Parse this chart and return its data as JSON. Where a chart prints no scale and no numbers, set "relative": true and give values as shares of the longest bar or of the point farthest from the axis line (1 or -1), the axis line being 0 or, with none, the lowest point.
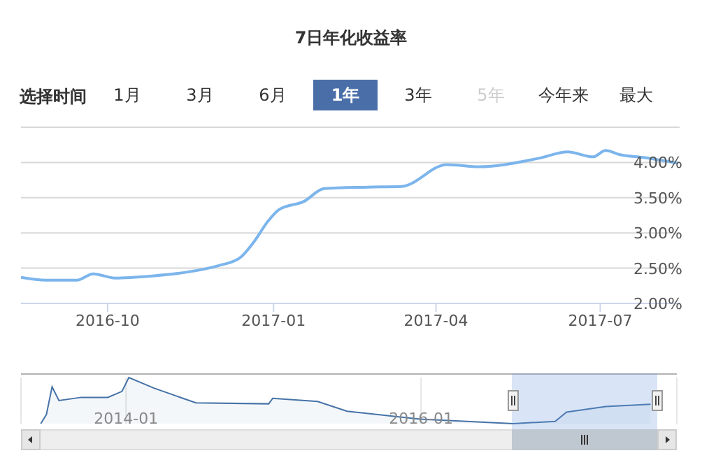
{
  "chart_data": [
    {
      "type": "line",
      "title": "7日年化收益率",
      "annotations": [
        "选择时间",
        "1月",
        "3月",
        "6月",
        "1年",
        "3年",
        "5年",
        "今年来",
        "最大"
      ],
      "x": [
        "2016-08-14",
        "2016-08-28",
        "2016-09-14",
        "2016-09-23",
        "2016-10-05",
        "2016-10-26",
        "2016-11-13",
        "2016-12-02",
        "2016-12-13",
        "2016-12-21",
        "2016-12-29",
        "2017-01-04",
        "2017-01-18",
        "2017-01-29",
        "2017-02-22",
        "2017-03-13",
        "2017-04-07",
        "2017-04-25",
        "2017-05-28",
        "2017-06-13",
        "2017-06-27",
        "2017-07-04",
        "2017-07-12",
        "2017-07-25",
        "2017-08-13"
      ],
      "series": [
        {
          "color": "#7cb5ec",
          "values": [
            2.37,
            2.33,
            2.33,
            2.42,
            2.36,
            2.39,
            2.44,
            2.54,
            2.64,
            2.87,
            3.17,
            3.33,
            3.45,
            3.63,
            3.65,
            3.66,
            3.97,
            3.94,
            4.06,
            4.15,
            4.08,
            4.17,
            4.11,
            4.07,
            3.99
          ]
        }
      ],
      "xlim": [
        "2016-08-14",
        "2017-08-14"
      ],
      "xticks": [
        "2016-10",
        "2017-01",
        "2017-04",
        "2017-07"
      ],
      "ylim": [
        2.0,
        4.5
      ],
      "yticks": [
        {
          "value": 2.0,
          "label": "2.00%"
        },
        {
          "value": 2.5,
          "label": "2.50%"
        },
        {
          "value": 3.0,
          "label": "3.00%"
        },
        {
          "value": 3.5,
          "label": "3.50%"
        },
        {
          "value": 4.0,
          "label": "4.00%"
        },
        {
          "value": 4.5,
          "label": null
        }
      ],
      "grid": "y",
      "legend": false,
      "marker": "none",
      "line_style": "solid"
    },
    {
      "type": "area",
      "relative": true,
      "x": [
        "2013-06-04",
        "2013-06-18",
        "2013-07-02",
        "2013-07-19",
        "2013-09-12",
        "2013-11-17",
        "2013-12-22",
        "2014-01-08",
        "2014-03-11",
        "2014-06-23",
        "2014-12-20",
        "2014-12-30",
        "2015-04-20",
        "2015-07-02",
        "2015-12-29",
        "2016-08-16",
        "2016-11-28",
        "2016-12-26",
        "2017-04-02",
        "2017-07-22"
      ],
      "series": [
        {
          "color": "#4572a7",
          "values": [
            0,
            0.2,
            0.8,
            0.5,
            0.57,
            0.57,
            0.7,
            1,
            0.77,
            0.45,
            0.43,
            0.55,
            0.48,
            0.27,
            0.1,
            0,
            0.05,
            0.25,
            0.37,
            0.42
          ]
        }
      ],
      "xlim": [
        "2013-04-16",
        "2017-09-25"
      ],
      "xticks": [
        "2014-01",
        "2016-01"
      ],
      "grid": "x",
      "legend": false
    }
  ]
}
